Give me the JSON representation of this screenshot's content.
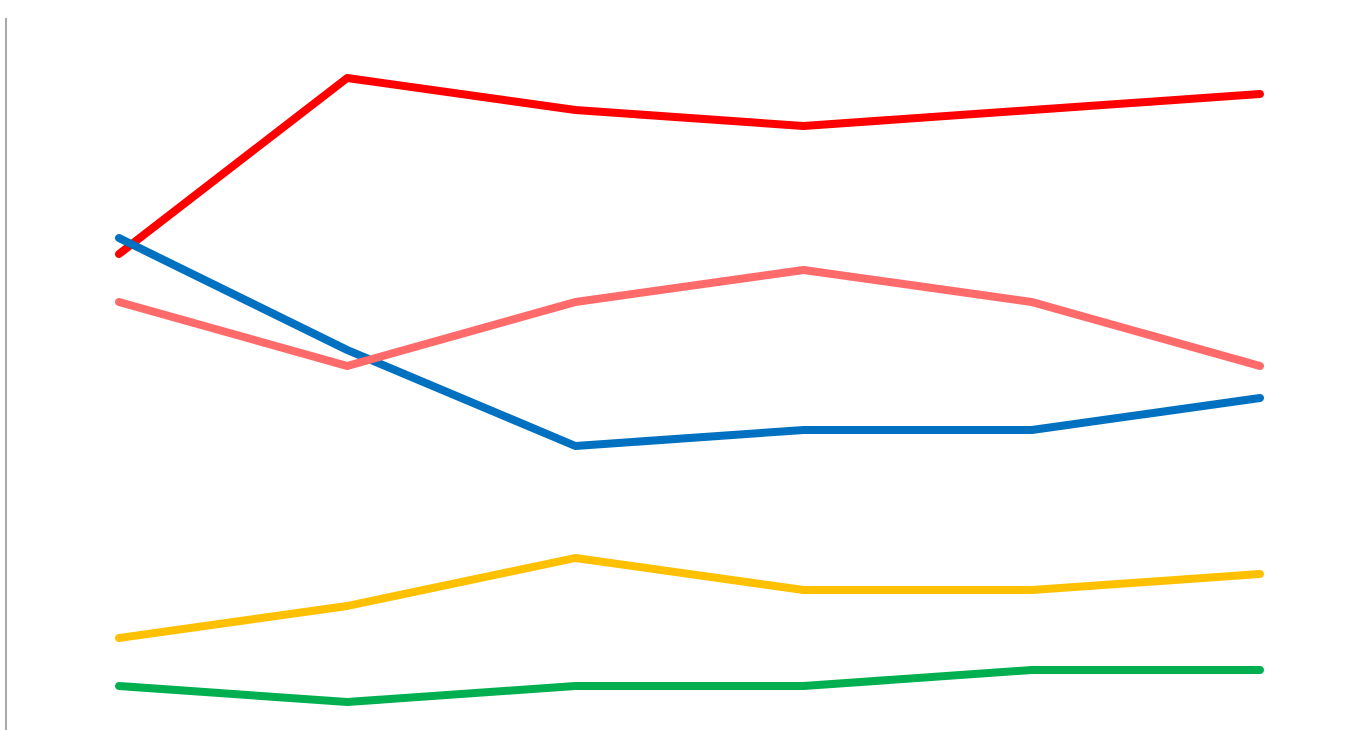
{
  "chart_data": {
    "type": "line",
    "title": "",
    "xlabel": "",
    "ylabel": "",
    "x": [
      1,
      2,
      3,
      4,
      5,
      6
    ],
    "ylim": [
      0,
      42
    ],
    "grid": false,
    "legend": "none",
    "series": [
      {
        "color": "#ff0000",
        "values": [
          29,
          40,
          38,
          37,
          38,
          39
        ]
      },
      {
        "color": "#0070c0",
        "values": [
          30,
          23,
          17,
          18,
          18,
          20
        ]
      },
      {
        "color": "#ff6b6b",
        "values": [
          26,
          22,
          26,
          28,
          26,
          22
        ]
      },
      {
        "color": "#ffc000",
        "values": [
          5,
          7,
          10,
          8,
          8,
          9
        ]
      },
      {
        "color": "#00b050",
        "values": [
          2,
          1,
          2,
          2,
          3,
          3
        ]
      }
    ]
  }
}
